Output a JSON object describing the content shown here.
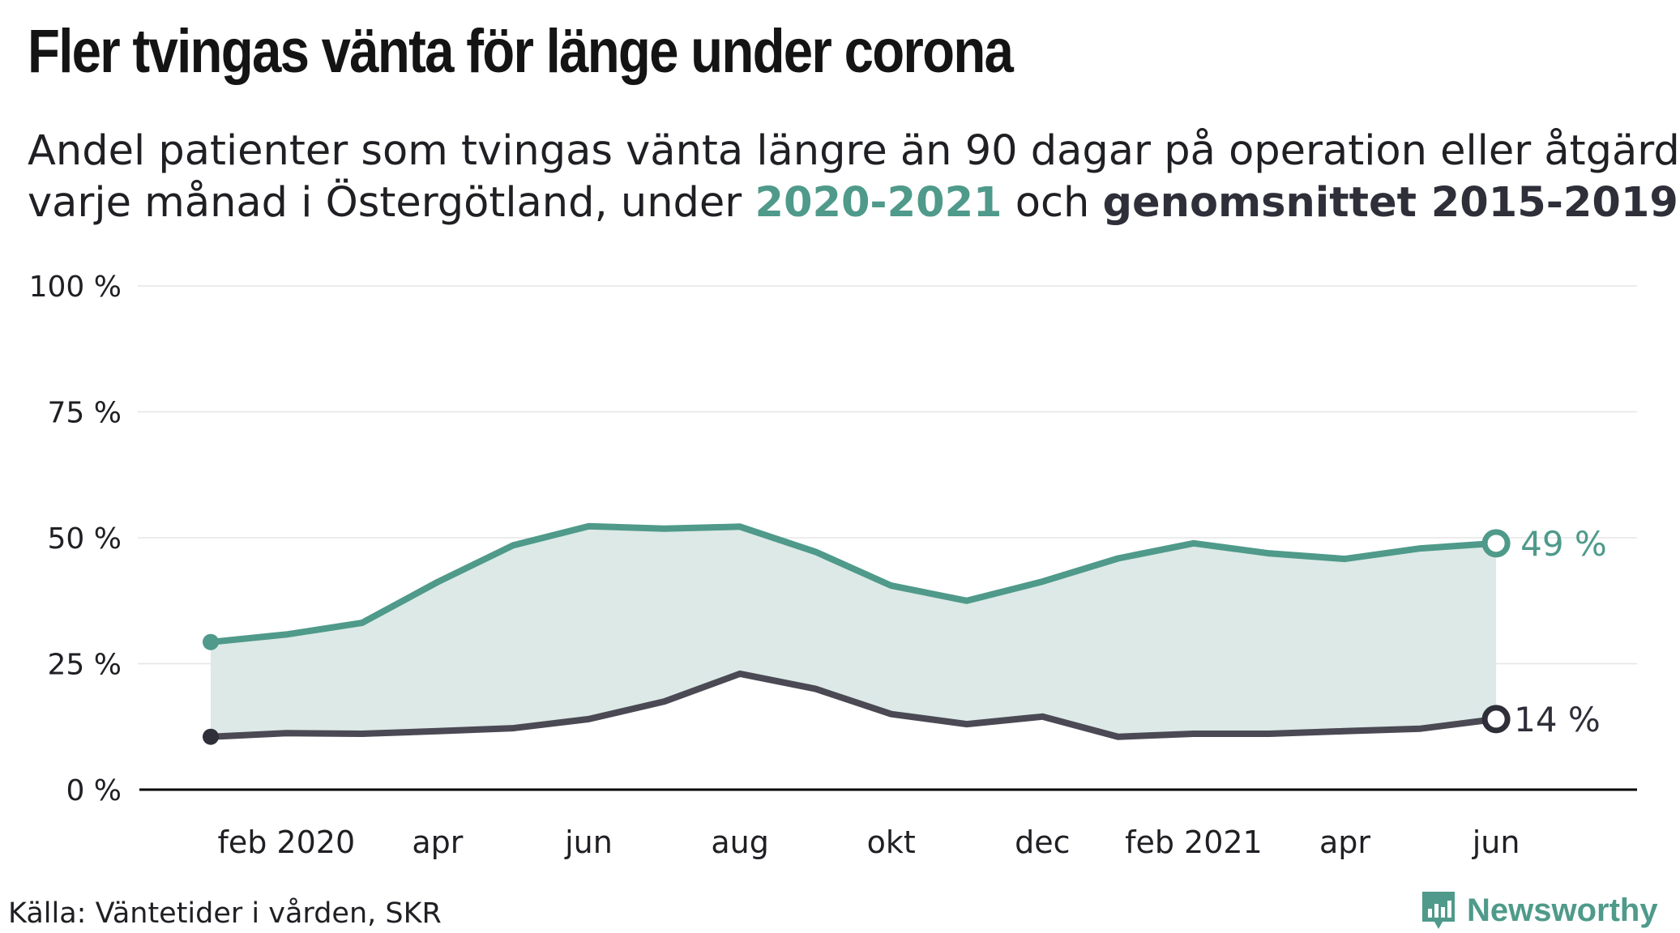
{
  "title": "Fler tvingas vänta för länge under corona",
  "subtitle": {
    "line1": "Andel patienter som tvingas vänta längre än 90 dagar på operation eller åtgärd",
    "line2_pre": "varje månad i Östergötland, under ",
    "line2_teal": "2020-2021",
    "line2_mid": " och ",
    "line2_dark": "genomsnittet 2015-2019"
  },
  "source": "Källa: Väntetider i vården, SKR",
  "brand": "Newsworthy",
  "colors": {
    "teal": "#4f9a8a",
    "dark": "#4a4954",
    "area": "#dce9e6",
    "grid": "#e6e6e6",
    "axis": "#000000"
  },
  "chart_data": {
    "type": "line",
    "y_ticks": [
      "100 %",
      "75 %",
      "50 %",
      "25 %",
      "0 %"
    ],
    "ylim": [
      0,
      100
    ],
    "x_labels": [
      "feb 2020",
      "apr",
      "jun",
      "aug",
      "okt",
      "dec",
      "feb 2021",
      "apr",
      "jun"
    ],
    "x_label_index": [
      1,
      3,
      5,
      7,
      9,
      11,
      13,
      15,
      17
    ],
    "months": [
      "2020-01",
      "2020-02",
      "2020-03",
      "2020-04",
      "2020-05",
      "2020-06",
      "2020-07",
      "2020-08",
      "2020-09",
      "2020-10",
      "2020-11",
      "2020-12",
      "2021-01",
      "2021-02",
      "2021-03",
      "2021-04",
      "2021-05",
      "2021-06"
    ],
    "series": [
      {
        "key": "current",
        "values": [
          29.3,
          30.8,
          33.1,
          41.2,
          48.5,
          52.3,
          51.8,
          52.2,
          47.2,
          40.5,
          37.5,
          41.3,
          45.9,
          48.9,
          46.9,
          45.8,
          47.9,
          48.9
        ],
        "end_label": "49 %"
      },
      {
        "key": "average",
        "values": [
          10.5,
          11.2,
          11.1,
          11.6,
          12.2,
          14.0,
          17.5,
          23.0,
          20.0,
          15.0,
          13.0,
          14.5,
          10.5,
          11.1,
          11.1,
          11.6,
          12.1,
          14.0
        ],
        "end_label": "14 %"
      }
    ],
    "area_between_series": true,
    "grid": true
  }
}
